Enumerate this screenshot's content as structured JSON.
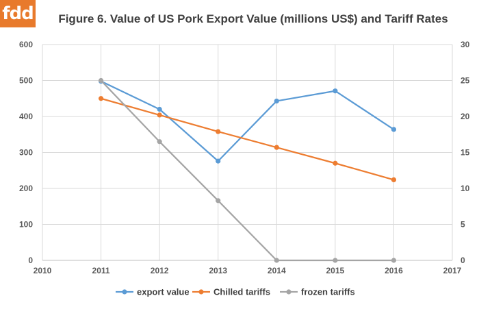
{
  "brand": {
    "logo_text": "fdd",
    "logo_color": "#e87a2c"
  },
  "chart_data": {
    "type": "line",
    "title": "Figure 6. Value of US Pork Export Value (millions US$) and Tariff Rates",
    "x": [
      2011,
      2012,
      2013,
      2014,
      2015,
      2016
    ],
    "xlim": [
      2010,
      2017
    ],
    "x_ticks": [
      "2010",
      "2011",
      "2012",
      "2013",
      "2014",
      "2015",
      "2016",
      "2017"
    ],
    "ylim_left": [
      0,
      600
    ],
    "y_ticks_left": [
      "0",
      "100",
      "200",
      "300",
      "400",
      "500",
      "600"
    ],
    "ylim_right": [
      0,
      30
    ],
    "y_ticks_right": [
      "0",
      "5",
      "10",
      "15",
      "20",
      "25",
      "30"
    ],
    "grid": true,
    "legend_position": "bottom",
    "series": [
      {
        "name": "export value",
        "axis": "left",
        "color": "#5b9bd5",
        "values": [
          498,
          420,
          276,
          443,
          471,
          364
        ]
      },
      {
        "name": "Chilled tariffs",
        "axis": "right",
        "color": "#ed7d31",
        "values": [
          22.5,
          20.2,
          17.9,
          15.7,
          13.5,
          11.2
        ]
      },
      {
        "name": "frozen tariffs",
        "axis": "right",
        "color": "#a5a5a5",
        "values": [
          25,
          16.5,
          8.3,
          0,
          0,
          0
        ]
      }
    ]
  }
}
